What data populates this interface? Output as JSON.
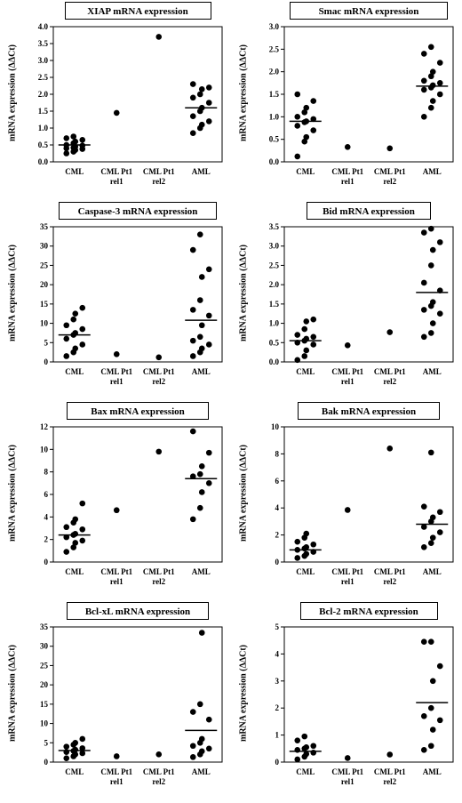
{
  "chart_data": [
    {
      "type": "scatter",
      "title": "XIAP mRNA expression",
      "ylabel": "mRNA expression (ΔΔCt)",
      "ylim": [
        0,
        4.0
      ],
      "yticks": [
        "0.0",
        "0.5",
        "1.0",
        "1.5",
        "2.0",
        "2.5",
        "3.0",
        "3.5",
        "4.0"
      ],
      "categories": [
        [
          "CML"
        ],
        [
          "CML Pt1",
          "rel1"
        ],
        [
          "CML Pt1",
          "rel2"
        ],
        [
          "AML"
        ]
      ],
      "points": [
        [
          0.25,
          0.3,
          0.35,
          0.38,
          0.4,
          0.42,
          0.45,
          0.48,
          0.5,
          0.55,
          0.6,
          0.65,
          0.7,
          0.75
        ],
        [
          1.45
        ],
        [
          3.7
        ],
        [
          0.85,
          1.0,
          1.1,
          1.2,
          1.35,
          1.5,
          1.6,
          1.75,
          1.9,
          2.0,
          2.15,
          2.2,
          2.3
        ]
      ],
      "means": [
        0.5,
        null,
        null,
        1.6
      ]
    },
    {
      "type": "scatter",
      "title": "Smac mRNA expression",
      "ylabel": "mRNA expression (ΔΔCt)",
      "ylim": [
        0,
        3.0
      ],
      "yticks": [
        "0.0",
        "0.5",
        "1.0",
        "1.5",
        "2.0",
        "2.5",
        "3.0"
      ],
      "categories": [
        [
          "CML"
        ],
        [
          "CML Pt1",
          "rel1"
        ],
        [
          "CML Pt1",
          "rel2"
        ],
        [
          "AML"
        ]
      ],
      "points": [
        [
          0.12,
          0.45,
          0.55,
          0.7,
          0.8,
          0.88,
          0.9,
          0.95,
          1.0,
          1.1,
          1.2,
          1.35,
          1.5
        ],
        [
          0.33
        ],
        [
          0.3
        ],
        [
          1.0,
          1.2,
          1.35,
          1.5,
          1.6,
          1.65,
          1.7,
          1.75,
          1.8,
          1.9,
          2.0,
          2.2,
          2.4,
          2.55
        ]
      ],
      "means": [
        0.9,
        null,
        null,
        1.68
      ]
    },
    {
      "type": "scatter",
      "title": "Caspase-3 mRNA expression",
      "ylabel": "mRNA expression (ΔΔCt)",
      "ylim": [
        0,
        35
      ],
      "yticks": [
        "0",
        "5",
        "10",
        "15",
        "20",
        "25",
        "30",
        "35"
      ],
      "categories": [
        [
          "CML"
        ],
        [
          "CML Pt1",
          "rel1"
        ],
        [
          "CML Pt1",
          "rel2"
        ],
        [
          "AML"
        ]
      ],
      "points": [
        [
          1.5,
          2.5,
          3.5,
          4.5,
          6.0,
          7.0,
          7.5,
          8.5,
          9.5,
          11.0,
          12.5,
          14.0
        ],
        [
          2.0
        ],
        [
          1.2
        ],
        [
          1.5,
          2.5,
          3.5,
          4.5,
          5.5,
          6.5,
          9.5,
          12.0,
          13.5,
          16.0,
          22.0,
          24.0,
          29.0,
          33.0
        ]
      ],
      "means": [
        7.0,
        null,
        null,
        10.8
      ]
    },
    {
      "type": "scatter",
      "title": "Bid mRNA expression",
      "ylabel": "mRNA expression (ΔΔCt)",
      "ylim": [
        0,
        3.5
      ],
      "yticks": [
        "0.0",
        "0.5",
        "1.0",
        "1.5",
        "2.0",
        "2.5",
        "3.0",
        "3.5"
      ],
      "categories": [
        [
          "CML"
        ],
        [
          "CML Pt1",
          "rel1"
        ],
        [
          "CML Pt1",
          "rel2"
        ],
        [
          "AML"
        ]
      ],
      "points": [
        [
          0.05,
          0.15,
          0.3,
          0.45,
          0.5,
          0.55,
          0.6,
          0.65,
          0.7,
          0.85,
          1.05,
          1.1
        ],
        [
          0.43
        ],
        [
          0.77
        ],
        [
          0.65,
          0.75,
          1.0,
          1.25,
          1.35,
          1.45,
          1.55,
          1.85,
          2.05,
          2.5,
          2.9,
          3.1,
          3.35,
          3.45
        ]
      ],
      "means": [
        0.55,
        null,
        null,
        1.8
      ]
    },
    {
      "type": "scatter",
      "title": "Bax mRNA expression",
      "ylabel": "mRNA expression (ΔΔCt)",
      "ylim": [
        0,
        12
      ],
      "yticks": [
        "0",
        "2",
        "4",
        "6",
        "8",
        "10",
        "12"
      ],
      "categories": [
        [
          "CML"
        ],
        [
          "CML Pt1",
          "rel1"
        ],
        [
          "CML Pt1",
          "rel2"
        ],
        [
          "AML"
        ]
      ],
      "points": [
        [
          0.9,
          1.3,
          1.7,
          1.9,
          2.2,
          2.4,
          2.5,
          2.9,
          3.1,
          3.5,
          3.8,
          5.2
        ],
        [
          4.6
        ],
        [
          9.8
        ],
        [
          3.8,
          4.8,
          6.2,
          7.0,
          7.6,
          7.8,
          8.5,
          9.7,
          11.6
        ]
      ],
      "means": [
        2.4,
        null,
        null,
        7.4
      ]
    },
    {
      "type": "scatter",
      "title": "Bak mRNA expression",
      "ylabel": "mRNA expression (ΔΔCt)",
      "ylim": [
        0,
        10
      ],
      "yticks": [
        "0",
        "2",
        "4",
        "6",
        "8",
        "10"
      ],
      "categories": [
        [
          "CML"
        ],
        [
          "CML Pt1",
          "rel1"
        ],
        [
          "CML Pt1",
          "rel2"
        ],
        [
          "AML"
        ]
      ],
      "points": [
        [
          0.3,
          0.45,
          0.6,
          0.75,
          0.9,
          1.0,
          1.1,
          1.3,
          1.5,
          1.8,
          2.1
        ],
        [
          3.85
        ],
        [
          8.4
        ],
        [
          1.1,
          1.4,
          1.8,
          2.2,
          2.6,
          3.0,
          3.3,
          3.7,
          4.1,
          8.1
        ]
      ],
      "means": [
        0.9,
        null,
        null,
        2.8
      ]
    },
    {
      "type": "scatter",
      "title": "Bcl-xL mRNA expression",
      "ylabel": "mRNA expression (ΔΔCt)",
      "ylim": [
        0,
        35
      ],
      "yticks": [
        "0",
        "5",
        "10",
        "15",
        "20",
        "25",
        "30",
        "35"
      ],
      "categories": [
        [
          "CML"
        ],
        [
          "CML Pt1",
          "rel1"
        ],
        [
          "CML Pt1",
          "rel2"
        ],
        [
          "AML"
        ]
      ],
      "points": [
        [
          1.0,
          1.5,
          2.0,
          2.3,
          2.6,
          2.9,
          3.2,
          3.6,
          4.0,
          4.5,
          5.0,
          6.0
        ],
        [
          1.5
        ],
        [
          2.0
        ],
        [
          1.3,
          2.0,
          2.8,
          3.5,
          4.2,
          5.0,
          6.0,
          11.0,
          13.0,
          15.0,
          33.5
        ]
      ],
      "means": [
        3.0,
        null,
        null,
        8.2
      ]
    },
    {
      "type": "scatter",
      "title": "Bcl-2 mRNA expression",
      "ylabel": "mRNA expression (ΔΔCt)",
      "ylim": [
        0,
        5
      ],
      "yticks": [
        "0",
        "1",
        "2",
        "3",
        "4",
        "5"
      ],
      "categories": [
        [
          "CML"
        ],
        [
          "CML Pt1",
          "rel1"
        ],
        [
          "CML Pt1",
          "rel2"
        ],
        [
          "AML"
        ]
      ],
      "points": [
        [
          0.1,
          0.2,
          0.3,
          0.35,
          0.45,
          0.5,
          0.55,
          0.6,
          0.8,
          0.95
        ],
        [
          0.15
        ],
        [
          0.28
        ],
        [
          0.45,
          0.6,
          1.2,
          1.55,
          1.7,
          2.0,
          3.0,
          3.55,
          4.45,
          4.45
        ]
      ],
      "means": [
        0.4,
        null,
        null,
        2.2
      ]
    }
  ]
}
